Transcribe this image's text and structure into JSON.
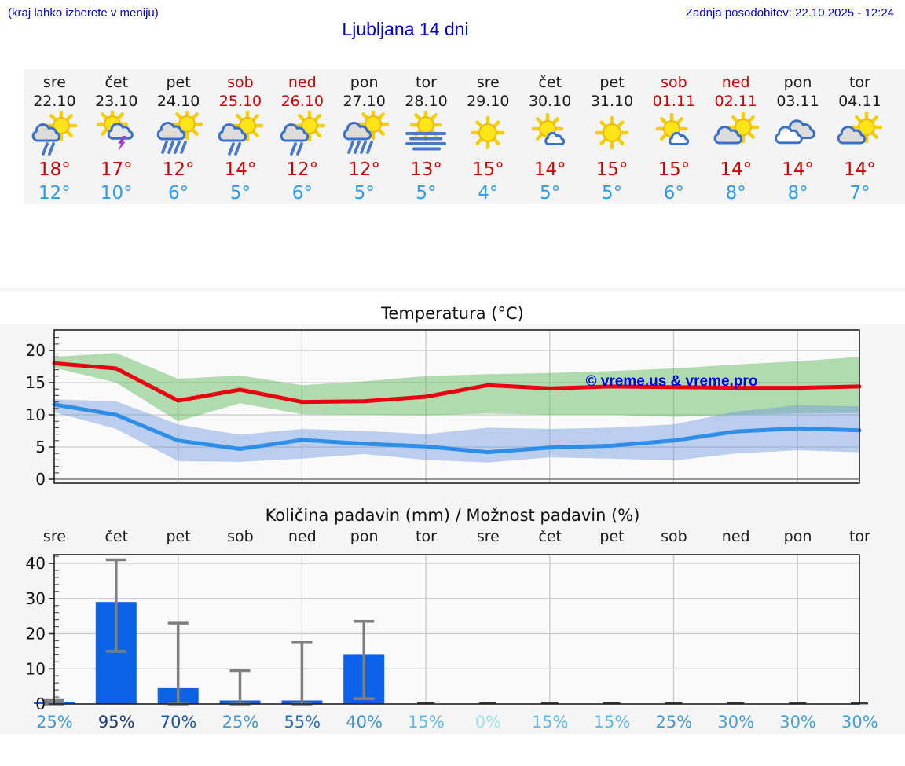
{
  "header": {
    "note": "(kraj lahko izberete v meniju)",
    "title": "Ljubljana 14 dni",
    "updated": "Zadnja posodobitev: 22.10.2025 - 12:24"
  },
  "colors": {
    "link_blue": "#0000cc",
    "tmax_red": "#cc0000",
    "tmin_blue": "#2b9bf0",
    "weekend_red": "#cc0000",
    "strip_bg": "#f4f4f5",
    "section_bg": "#f5f5f6",
    "bar_blue": "#0b62e6",
    "line_max": "#e60010",
    "line_min": "#2f8fe8",
    "band_max": "#55b555",
    "band_min": "#6f99e0"
  },
  "forecast": {
    "days": [
      {
        "name": "sre",
        "date": "22.10",
        "weekend": false,
        "icon": "sun-cloud-rain",
        "tmax": "18°",
        "tmin": "12°"
      },
      {
        "name": "čet",
        "date": "23.10",
        "weekend": false,
        "icon": "sun-cloud-storm",
        "tmax": "17°",
        "tmin": "10°"
      },
      {
        "name": "pet",
        "date": "24.10",
        "weekend": false,
        "icon": "sun-cloud-rain-heavy",
        "tmax": "12°",
        "tmin": "6°"
      },
      {
        "name": "sob",
        "date": "25.10",
        "weekend": true,
        "icon": "sun-cloud-rain",
        "tmax": "14°",
        "tmin": "5°"
      },
      {
        "name": "ned",
        "date": "26.10",
        "weekend": true,
        "icon": "sun-cloud-rain",
        "tmax": "12°",
        "tmin": "6°"
      },
      {
        "name": "pon",
        "date": "27.10",
        "weekend": false,
        "icon": "sun-cloud-rain-heavy",
        "tmax": "12°",
        "tmin": "5°"
      },
      {
        "name": "tor",
        "date": "28.10",
        "weekend": false,
        "icon": "sun-fog",
        "tmax": "13°",
        "tmin": "5°"
      },
      {
        "name": "sre",
        "date": "29.10",
        "weekend": false,
        "icon": "sun",
        "tmax": "15°",
        "tmin": "4°"
      },
      {
        "name": "čet",
        "date": "30.10",
        "weekend": false,
        "icon": "sun-small-cloud",
        "tmax": "14°",
        "tmin": "5°"
      },
      {
        "name": "pet",
        "date": "31.10",
        "weekend": false,
        "icon": "sun",
        "tmax": "15°",
        "tmin": "5°"
      },
      {
        "name": "sob",
        "date": "01.11",
        "weekend": true,
        "icon": "sun-small-cloud",
        "tmax": "15°",
        "tmin": "6°"
      },
      {
        "name": "ned",
        "date": "02.11",
        "weekend": true,
        "icon": "sun-cloud",
        "tmax": "14°",
        "tmin": "8°"
      },
      {
        "name": "pon",
        "date": "03.11",
        "weekend": false,
        "icon": "clouds",
        "tmax": "14°",
        "tmin": "8°"
      },
      {
        "name": "tor",
        "date": "04.11",
        "weekend": false,
        "icon": "sun-cloud",
        "tmax": "14°",
        "tmin": "7°"
      }
    ]
  },
  "chart_data": [
    {
      "type": "line",
      "title": "Temperatura (°C)",
      "x_labels": [
        "22.10",
        "23.10",
        "24.10",
        "25.10",
        "26.10",
        "27.10",
        "28.10",
        "29.10",
        "30.10",
        "31.10",
        "01.11",
        "02.11",
        "03.11",
        "04.11"
      ],
      "ylim": [
        -1,
        23
      ],
      "yticks": [
        0,
        5,
        10,
        15,
        20
      ],
      "grid": true,
      "watermark": "© vreme.us & vreme.pro",
      "series": [
        {
          "name": "max temperature",
          "color": "#e60010",
          "values": [
            18,
            17.2,
            12.2,
            13.9,
            12,
            12.1,
            12.8,
            14.6,
            14.1,
            14.4,
            14.3,
            14.2,
            14.2,
            14.4
          ]
        },
        {
          "name": "min temperature",
          "color": "#2f8fe8",
          "values": [
            11.6,
            10,
            6,
            4.7,
            6.1,
            5.5,
            5.1,
            4.2,
            4.9,
            5.2,
            6,
            7.4,
            7.9,
            7.6
          ]
        }
      ],
      "bands": [
        {
          "name": "max range",
          "color": "#55b555",
          "upper": [
            19,
            19.6,
            15.6,
            16.1,
            14.6,
            15.2,
            16,
            16.3,
            16.5,
            16.8,
            17.2,
            17.8,
            18.3,
            19
          ],
          "lower": [
            17.3,
            15,
            9,
            11.8,
            10.1,
            10,
            9.9,
            10.2,
            10,
            10,
            9.7,
            10,
            10.2,
            10.3
          ]
        },
        {
          "name": "min range",
          "color": "#6f99e0",
          "upper": [
            12.4,
            12.1,
            8.5,
            6.9,
            7.8,
            7.5,
            7,
            8,
            7.8,
            8,
            8.5,
            10.5,
            11.5,
            11.3
          ],
          "lower": [
            10.4,
            7.8,
            2.8,
            2.7,
            3.2,
            3.9,
            3,
            2.6,
            3.4,
            3.2,
            2.9,
            4,
            4.5,
            4.2
          ]
        }
      ]
    },
    {
      "type": "bar",
      "title": "Količina padavin (mm) / Možnost padavin (%)",
      "categories": [
        "sre",
        "čet",
        "pet",
        "sob",
        "ned",
        "pon",
        "tor",
        "sre",
        "čet",
        "pet",
        "sob",
        "ned",
        "pon",
        "tor"
      ],
      "values": [
        0.5,
        29,
        4.5,
        1,
        1,
        14,
        0,
        0,
        0,
        0,
        0,
        0,
        0,
        0
      ],
      "err_low": [
        0,
        15,
        0,
        0,
        0,
        1.5,
        null,
        null,
        null,
        null,
        null,
        null,
        null,
        null
      ],
      "err_high": [
        1,
        41,
        23,
        9.5,
        17.5,
        23.5,
        null,
        null,
        null,
        null,
        null,
        null,
        null,
        null
      ],
      "ylim": [
        0,
        43
      ],
      "yticks": [
        0,
        10,
        20,
        30,
        40
      ],
      "grid": true,
      "bar_color": "#0b62e6",
      "probabilities": [
        {
          "label": "25%",
          "color": "#4796cb"
        },
        {
          "label": "95%",
          "color": "#1a3a74"
        },
        {
          "label": "70%",
          "color": "#1f54a0"
        },
        {
          "label": "25%",
          "color": "#4796cb"
        },
        {
          "label": "55%",
          "color": "#2c6cb4"
        },
        {
          "label": "40%",
          "color": "#3d93cf"
        },
        {
          "label": "15%",
          "color": "#61b8e0"
        },
        {
          "label": "0%",
          "color": "#9fe4ea"
        },
        {
          "label": "15%",
          "color": "#61b8e0"
        },
        {
          "label": "15%",
          "color": "#61b8e0"
        },
        {
          "label": "25%",
          "color": "#4796cb"
        },
        {
          "label": "30%",
          "color": "#459fd2"
        },
        {
          "label": "30%",
          "color": "#459fd2"
        },
        {
          "label": "30%",
          "color": "#459fd2"
        }
      ]
    }
  ]
}
